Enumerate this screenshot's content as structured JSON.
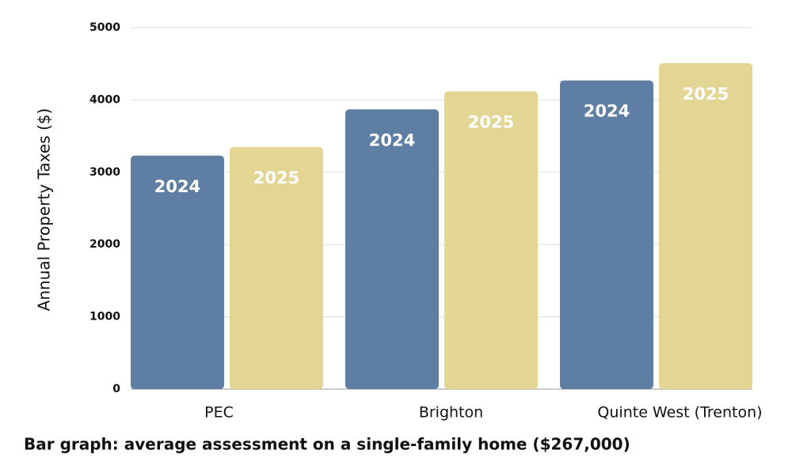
{
  "chart_data": {
    "type": "bar",
    "y_label": "Annual Property Taxes ($)",
    "caption": "Bar graph: average assessment on a single-family home ($267,000)",
    "categories": [
      "PEC",
      "Brighton",
      "Quinte West (Trenton)"
    ],
    "series": [
      {
        "name": "2024",
        "color": "#5f7ea3",
        "values": [
          3230,
          3870,
          4270
        ]
      },
      {
        "name": "2025",
        "color": "#e3d594",
        "values": [
          3350,
          4120,
          4510
        ]
      }
    ],
    "ylim": [
      0,
      5000
    ],
    "yticks": [
      0,
      1000,
      2000,
      3000,
      4000,
      5000
    ],
    "grid": true
  }
}
